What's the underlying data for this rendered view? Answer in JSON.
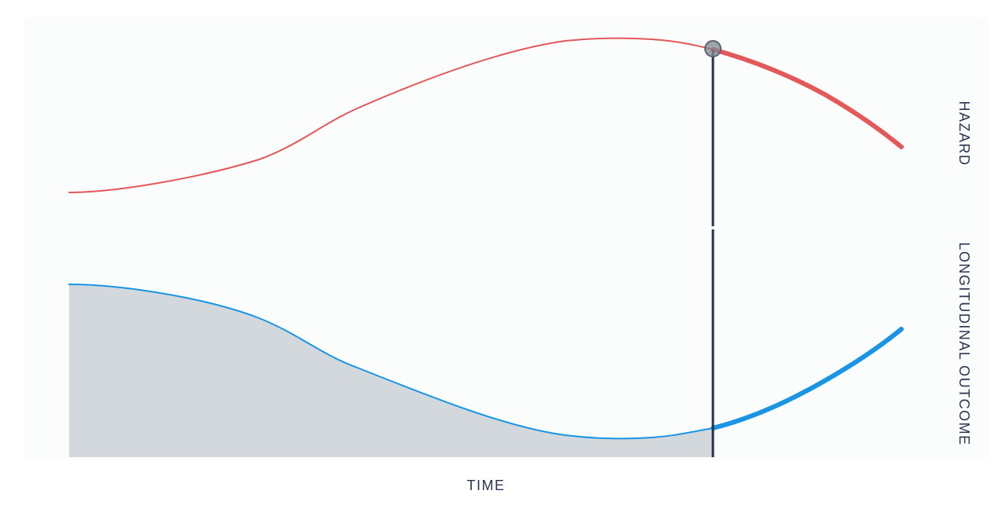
{
  "labels": {
    "x_axis": "TIME",
    "top_panel": "HAZARD",
    "bottom_panel": "LONGITUDINAL OUTCOME"
  },
  "colors": {
    "background": "#fbfcfc",
    "hazard_curve": "#e35858",
    "outcome_curve": "#1a95e6",
    "outcome_fill": "#d3d8dc",
    "marker_line": "#243047",
    "marker_dot": "#7f8793",
    "text": "#2b3550"
  },
  "icons": {
    "marker": "circle-marker-icon"
  }
}
